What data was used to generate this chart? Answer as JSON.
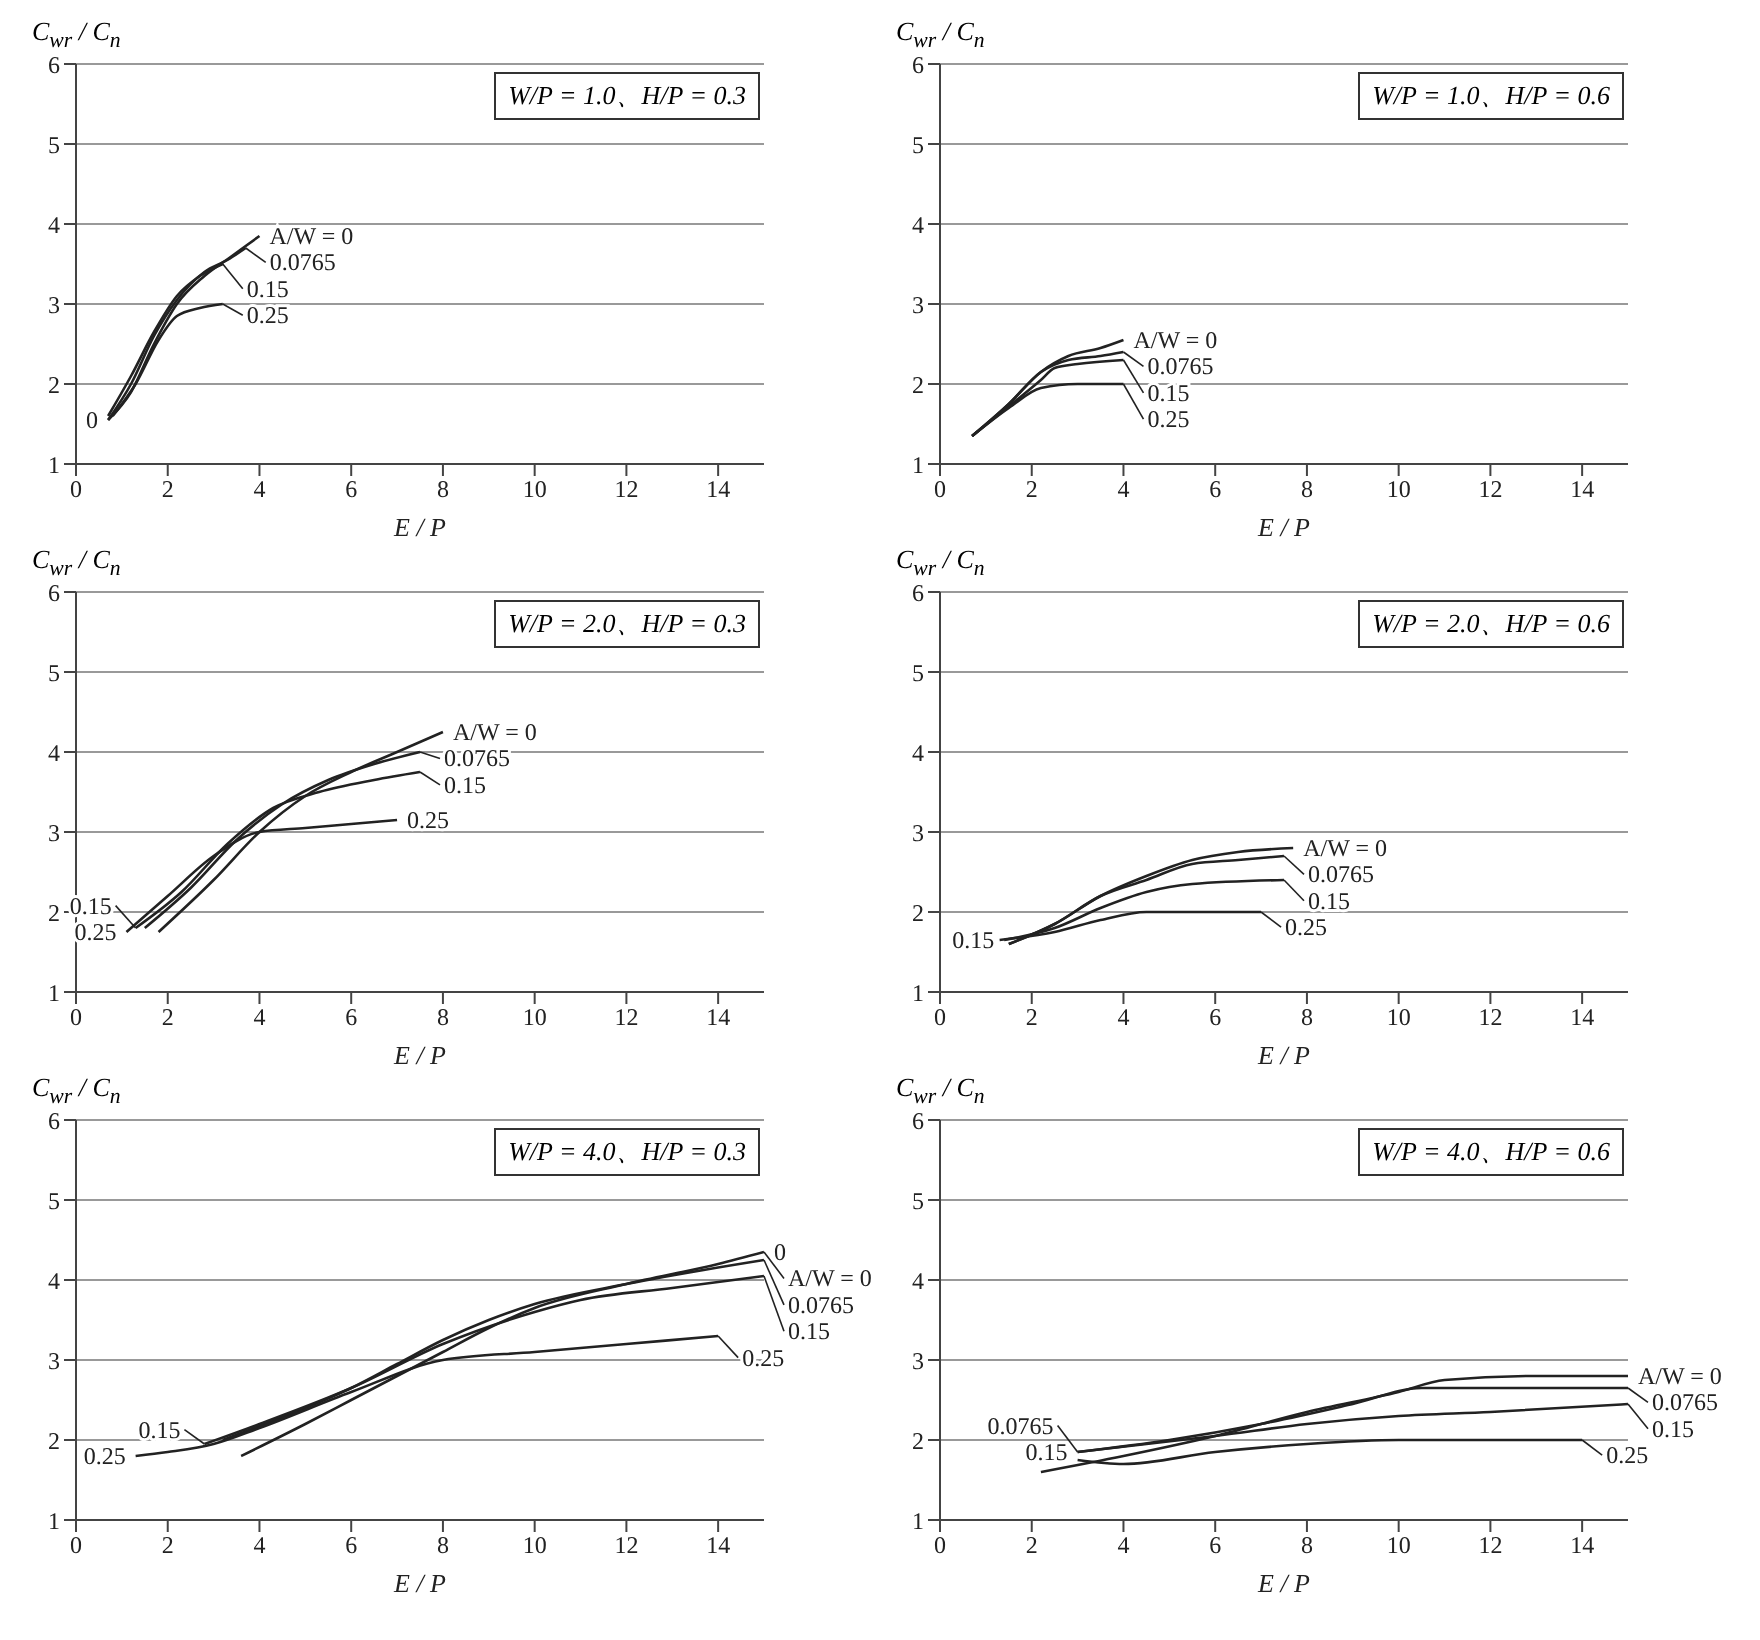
{
  "chart_data": [
    {
      "type": "line",
      "ylabel": "C$_{wr}$ / C$_{n}$",
      "xlabel": "E / P",
      "xlim": [
        0,
        15
      ],
      "xticks": [
        0,
        2,
        4,
        6,
        8,
        10,
        12,
        14
      ],
      "ylim": [
        1,
        6
      ],
      "yticks": [
        1,
        2,
        3,
        4,
        5,
        6
      ],
      "grid": "y",
      "legend": false,
      "marker": "none",
      "line_style": "solid",
      "annotations": [
        "W/P = 1.0、H/P = 0.3",
        {
          "text": "A/W = 0",
          "x": 4.0,
          "y": 3.85
        },
        {
          "text": "0.0765",
          "x": 3.7,
          "y": 3.7
        },
        {
          "text": "0.15",
          "x": 3.2,
          "y": 3.5
        },
        {
          "text": "0.25",
          "x": 3.2,
          "y": 3.0
        },
        {
          "text": "0",
          "x": 0.7,
          "y": 1.55
        }
      ],
      "series": [
        {
          "color": "#222222",
          "x": [
            0.7,
            1.2,
            1.7,
            2.2,
            2.8,
            3.4,
            4.0
          ],
          "values": [
            1.55,
            1.9,
            2.5,
            3.0,
            3.35,
            3.6,
            3.85
          ]
        },
        {
          "color": "#222222",
          "x": [
            0.7,
            1.2,
            1.7,
            2.2,
            2.8,
            3.3,
            3.7
          ],
          "values": [
            1.55,
            2.0,
            2.6,
            3.05,
            3.4,
            3.55,
            3.7
          ]
        },
        {
          "color": "#222222",
          "x": [
            0.7,
            1.2,
            1.7,
            2.2,
            2.7,
            3.2
          ],
          "values": [
            1.6,
            2.1,
            2.65,
            3.1,
            3.35,
            3.5
          ]
        },
        {
          "color": "#222222",
          "x": [
            0.8,
            1.3,
            1.8,
            2.2,
            2.7,
            3.2
          ],
          "values": [
            1.6,
            2.0,
            2.55,
            2.85,
            2.95,
            3.0
          ]
        }
      ]
    },
    {
      "type": "line",
      "ylabel": "C$_{wr}$ / C$_{n}$",
      "xlabel": "E / P",
      "xlim": [
        0,
        15
      ],
      "xticks": [
        0,
        2,
        4,
        6,
        8,
        10,
        12,
        14
      ],
      "ylim": [
        1,
        6
      ],
      "yticks": [
        1,
        2,
        3,
        4,
        5,
        6
      ],
      "grid": "y",
      "legend": false,
      "marker": "none",
      "line_style": "solid",
      "annotations": [
        "W/P = 1.0、H/P = 0.6",
        {
          "text": "A/W = 0",
          "x": 4.0,
          "y": 2.55
        },
        {
          "text": "0.0765",
          "x": 4.0,
          "y": 2.4
        },
        {
          "text": "0.15",
          "x": 4.0,
          "y": 2.3
        },
        {
          "text": "0.25",
          "x": 4.0,
          "y": 2.0
        }
      ],
      "series": [
        {
          "color": "#222222",
          "x": [
            0.7,
            1.5,
            2.2,
            2.8,
            3.5,
            4.0
          ],
          "values": [
            1.35,
            1.75,
            2.15,
            2.35,
            2.45,
            2.55
          ]
        },
        {
          "color": "#222222",
          "x": [
            0.7,
            1.5,
            2.2,
            2.8,
            3.5,
            4.0
          ],
          "values": [
            1.35,
            1.75,
            2.15,
            2.3,
            2.35,
            2.4
          ]
        },
        {
          "color": "#222222",
          "x": [
            0.7,
            1.5,
            2.2,
            2.5,
            3.0,
            4.0
          ],
          "values": [
            1.35,
            1.72,
            2.05,
            2.2,
            2.25,
            2.3
          ]
        },
        {
          "color": "#222222",
          "x": [
            0.7,
            1.5,
            2.2,
            3.0,
            4.0
          ],
          "values": [
            1.35,
            1.7,
            1.95,
            2.0,
            2.0
          ]
        }
      ]
    },
    {
      "type": "line",
      "ylabel": "C$_{wr}$ / C$_{n}$",
      "xlabel": "E / P",
      "xlim": [
        0,
        15
      ],
      "xticks": [
        0,
        2,
        4,
        6,
        8,
        10,
        12,
        14
      ],
      "ylim": [
        1,
        6
      ],
      "yticks": [
        1,
        2,
        3,
        4,
        5,
        6
      ],
      "grid": "y",
      "legend": false,
      "marker": "none",
      "line_style": "solid",
      "annotations": [
        "W/P = 2.0、H/P = 0.3",
        {
          "text": "A/W = 0",
          "x": 8,
          "y": 4.25
        },
        {
          "text": "0.0765",
          "x": 7.5,
          "y": 4.0
        },
        {
          "text": "0.15",
          "x": 7.5,
          "y": 3.75
        },
        {
          "text": "0.25",
          "x": 7,
          "y": 3.15
        },
        {
          "text": "0.15",
          "x": 1.3,
          "y": 1.8
        },
        {
          "text": "0.25",
          "x": 1.1,
          "y": 1.75
        }
      ],
      "series": [
        {
          "color": "#222222",
          "x": [
            1.8,
            3,
            4,
            5,
            6,
            7,
            8
          ],
          "values": [
            1.75,
            2.4,
            3.0,
            3.45,
            3.75,
            4.0,
            4.25
          ]
        },
        {
          "color": "#222222",
          "x": [
            1.5,
            2.5,
            3.5,
            4.5,
            5.5,
            6.5,
            7.5
          ],
          "values": [
            1.8,
            2.3,
            2.9,
            3.35,
            3.65,
            3.85,
            4.0
          ]
        },
        {
          "color": "#222222",
          "x": [
            1.3,
            2.3,
            3.3,
            4.3,
            5.3,
            6.5,
            7.5
          ],
          "values": [
            1.8,
            2.25,
            2.85,
            3.3,
            3.5,
            3.65,
            3.75
          ]
        },
        {
          "color": "#222222",
          "x": [
            1.1,
            2,
            3,
            4,
            5,
            6,
            7
          ],
          "values": [
            1.75,
            2.2,
            2.7,
            3.0,
            3.05,
            3.1,
            3.15
          ]
        }
      ]
    },
    {
      "type": "line",
      "ylabel": "C$_{wr}$ / C$_{n}$",
      "xlabel": "E / P",
      "xlim": [
        0,
        15
      ],
      "xticks": [
        0,
        2,
        4,
        6,
        8,
        10,
        12,
        14
      ],
      "ylim": [
        1,
        6
      ],
      "yticks": [
        1,
        2,
        3,
        4,
        5,
        6
      ],
      "grid": "y",
      "legend": false,
      "marker": "none",
      "line_style": "solid",
      "annotations": [
        "W/P = 2.0、H/P = 0.6",
        {
          "text": "A/W = 0",
          "x": 7.7,
          "y": 2.8
        },
        {
          "text": "0.0765",
          "x": 7.5,
          "y": 2.7
        },
        {
          "text": "0.15",
          "x": 7.5,
          "y": 2.4
        },
        {
          "text": "0.25",
          "x": 7.0,
          "y": 2.0
        },
        {
          "text": "0.15",
          "x": 1.4,
          "y": 1.65
        }
      ],
      "series": [
        {
          "color": "#222222",
          "x": [
            1.5,
            2.5,
            3.5,
            4.5,
            5.5,
            6.5,
            7.7
          ],
          "values": [
            1.6,
            1.85,
            2.2,
            2.45,
            2.65,
            2.75,
            2.8
          ]
        },
        {
          "color": "#222222",
          "x": [
            1.5,
            2.5,
            3.5,
            4.5,
            5.5,
            6.5,
            7.5
          ],
          "values": [
            1.6,
            1.85,
            2.2,
            2.4,
            2.6,
            2.65,
            2.7
          ]
        },
        {
          "color": "#222222",
          "x": [
            1.4,
            2.5,
            3.5,
            4.5,
            5.5,
            7.5
          ],
          "values": [
            1.65,
            1.8,
            2.05,
            2.25,
            2.35,
            2.4
          ]
        },
        {
          "color": "#222222",
          "x": [
            1.3,
            2.5,
            3.5,
            4.5,
            5.5,
            7.0
          ],
          "values": [
            1.65,
            1.75,
            1.9,
            2.0,
            2.0,
            2.0
          ]
        }
      ]
    },
    {
      "type": "line",
      "ylabel": "C$_{wr}$ / C$_{n}$",
      "xlabel": "E / P",
      "xlim": [
        0,
        15
      ],
      "xticks": [
        0,
        2,
        4,
        6,
        8,
        10,
        12,
        14
      ],
      "ylim": [
        1,
        6
      ],
      "yticks": [
        1,
        2,
        3,
        4,
        5,
        6
      ],
      "grid": "y",
      "legend": false,
      "marker": "none",
      "line_style": "solid",
      "annotations": [
        "W/P = 4.0、H/P = 0.3",
        {
          "text": "0",
          "x": 15,
          "y": 4.35
        },
        {
          "text": "A/W = 0",
          "x": 15,
          "y": 4.35
        },
        {
          "text": "0.0765",
          "x": 15,
          "y": 4.25
        },
        {
          "text": "0.15",
          "x": 15,
          "y": 4.05
        },
        {
          "text": "0.25",
          "x": 14,
          "y": 3.3
        },
        {
          "text": "0.15",
          "x": 2.8,
          "y": 1.95
        },
        {
          "text": "0.25",
          "x": 1.3,
          "y": 1.8
        }
      ],
      "series": [
        {
          "color": "#222222",
          "x": [
            3.6,
            5,
            6,
            7,
            8,
            9,
            10,
            12,
            14,
            15
          ],
          "values": [
            1.8,
            2.2,
            2.5,
            2.8,
            3.1,
            3.4,
            3.65,
            3.95,
            4.2,
            4.35
          ]
        },
        {
          "color": "#222222",
          "x": [
            3.2,
            5,
            6,
            7,
            8,
            9,
            10,
            12,
            15
          ],
          "values": [
            2.0,
            2.4,
            2.65,
            2.95,
            3.25,
            3.5,
            3.7,
            3.95,
            4.25
          ]
        },
        {
          "color": "#222222",
          "x": [
            2.8,
            4,
            6,
            8,
            10,
            11,
            13,
            15
          ],
          "values": [
            1.95,
            2.2,
            2.65,
            3.2,
            3.6,
            3.75,
            3.9,
            4.05
          ]
        },
        {
          "color": "#222222",
          "x": [
            1.3,
            2,
            3,
            4,
            6,
            8,
            10,
            12,
            14
          ],
          "values": [
            1.8,
            1.85,
            1.95,
            2.15,
            2.6,
            3.0,
            3.1,
            3.2,
            3.3
          ]
        }
      ]
    },
    {
      "type": "line",
      "ylabel": "C$_{wr}$ / C$_{n}$",
      "xlabel": "E / P",
      "xlim": [
        0,
        15
      ],
      "xticks": [
        0,
        2,
        4,
        6,
        8,
        10,
        12,
        14
      ],
      "ylim": [
        1,
        6
      ],
      "yticks": [
        1,
        2,
        3,
        4,
        5,
        6
      ],
      "grid": "y",
      "legend": false,
      "marker": "none",
      "line_style": "solid",
      "annotations": [
        "W/P = 4.0、H/P = 0.6",
        {
          "text": "A/W = 0",
          "x": 15,
          "y": 2.8
        },
        {
          "text": "0.0765",
          "x": 15,
          "y": 2.65
        },
        {
          "text": "0.15",
          "x": 15,
          "y": 2.45
        },
        {
          "text": "0.15",
          "x": 3,
          "y": 1.85
        },
        {
          "text": "0.0765",
          "x": 3,
          "y": 1.85
        },
        {
          "text": "0.25",
          "x": 14,
          "y": 2.0
        }
      ],
      "series": [
        {
          "color": "#222222",
          "x": [
            2.2,
            4,
            6,
            8,
            10,
            11,
            13,
            15
          ],
          "values": [
            1.6,
            1.8,
            2.05,
            2.35,
            2.6,
            2.75,
            2.8,
            2.8
          ]
        },
        {
          "color": "#222222",
          "x": [
            3,
            5,
            7,
            9,
            10.5,
            11,
            13,
            15
          ],
          "values": [
            1.85,
            2.0,
            2.2,
            2.45,
            2.65,
            2.65,
            2.65,
            2.65
          ]
        },
        {
          "color": "#222222",
          "x": [
            3,
            4.5,
            6,
            8,
            10,
            12,
            15
          ],
          "values": [
            1.85,
            1.95,
            2.05,
            2.2,
            2.3,
            2.35,
            2.45
          ]
        },
        {
          "color": "#222222",
          "x": [
            3,
            4,
            6,
            8,
            10,
            12,
            14
          ],
          "values": [
            1.75,
            1.7,
            1.85,
            1.95,
            2.0,
            2.0,
            2.0
          ]
        }
      ]
    }
  ]
}
